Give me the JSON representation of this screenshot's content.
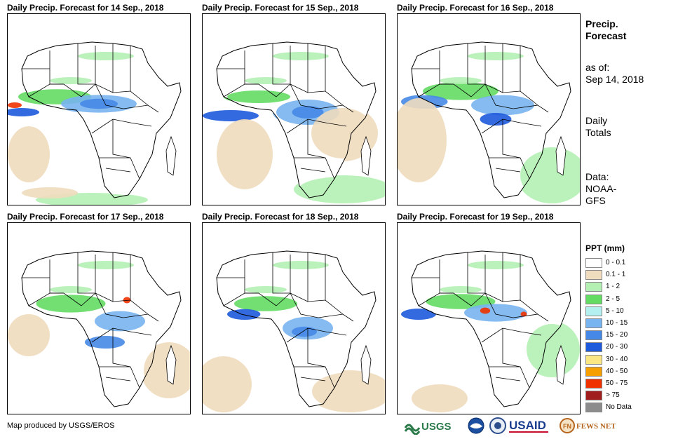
{
  "panels": [
    {
      "title": "Daily Precip. Forecast for 14  Sep., 2018"
    },
    {
      "title": "Daily Precip. Forecast for 15  Sep., 2018"
    },
    {
      "title": "Daily Precip. Forecast for 16  Sep., 2018"
    },
    {
      "title": "Daily Precip. Forecast for 17  Sep., 2018"
    },
    {
      "title": "Daily Precip. Forecast for 18  Sep., 2018"
    },
    {
      "title": "Daily Precip. Forecast for 19  Sep., 2018"
    }
  ],
  "side": {
    "title_line1": "Precip.",
    "title_line2": "Forecast",
    "asof_label": "as of:",
    "asof_date": "Sep 14, 2018",
    "daily1": "Daily",
    "daily2": "Totals",
    "data1": "Data:",
    "data2": "NOAA-",
    "data3": "GFS"
  },
  "legend": {
    "title": "PPT (mm)",
    "items": [
      {
        "label": "0 - 0.1",
        "color": "#ffffff"
      },
      {
        "label": "0.1 - 1",
        "color": "#f0dcbe"
      },
      {
        "label": "1 - 2",
        "color": "#b4f0b4"
      },
      {
        "label": "2 - 5",
        "color": "#64dc64"
      },
      {
        "label": "5 - 10",
        "color": "#b4f0f0"
      },
      {
        "label": "10 - 15",
        "color": "#78b4f0"
      },
      {
        "label": "15 - 20",
        "color": "#4688e6"
      },
      {
        "label": "20 - 30",
        "color": "#1e5adc"
      },
      {
        "label": "30 - 40",
        "color": "#fae682"
      },
      {
        "label": "40 - 50",
        "color": "#f5a000"
      },
      {
        "label": "50 - 75",
        "color": "#f03200"
      },
      {
        "label": "> 75",
        "color": "#a01e1e"
      },
      {
        "label": "No Data",
        "color": "#8c8c8c"
      }
    ]
  },
  "footer": {
    "credit": "Map produced by USGS/EROS"
  },
  "logos": {
    "usgs": "USGS",
    "usaid": "USAID",
    "fewsnet": "FEWS NET"
  }
}
